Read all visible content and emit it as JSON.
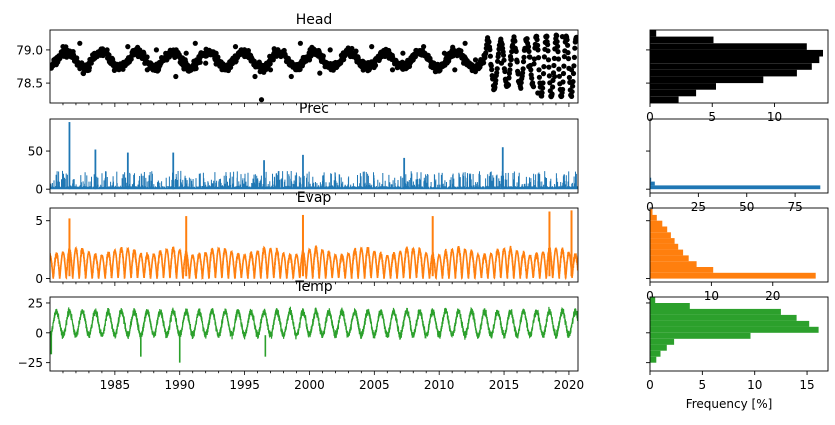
{
  "chart_data": [
    {
      "type": "scatter",
      "title": "Head",
      "x_range": [
        1980,
        2020.7
      ],
      "ylim": [
        78.2,
        79.3
      ],
      "y_ticks": [
        "78.5",
        "79.0"
      ],
      "x_ticks": [],
      "color": "#000000",
      "series": [
        {
          "x": [
            1980.3,
            1981.0,
            1981.6,
            1982.3,
            1983.0,
            1983.7,
            1984.4,
            1985.2,
            1986.0,
            1986.8,
            1987.5,
            1988.2,
            1989.0,
            1989.7,
            1990.5,
            1991.2,
            1992.0,
            1992.8,
            1993.6,
            1994.3,
            1995.0,
            1995.8,
            1996.3,
            1997.0,
            1997.8,
            1998.6,
            1999.3,
            2000.0,
            2000.8,
            2001.6,
            2002.4,
            2003.2,
            2004.0,
            2004.8,
            2005.6,
            2006.4,
            2007.2,
            2008.0,
            2008.8,
            2009.6,
            2010.4,
            2011.2,
            2012.0,
            2012.8,
            2013.5,
            2014.2,
            2014.8,
            2015.5,
            2016.2,
            2016.9,
            2017.6,
            2018.3,
            2018.9,
            2019.5,
            2020.2
          ],
          "y": [
            78.85,
            79.05,
            78.9,
            79.1,
            78.8,
            78.95,
            79.0,
            78.75,
            79.05,
            78.9,
            78.7,
            79.0,
            78.85,
            78.6,
            78.95,
            79.1,
            78.8,
            78.95,
            78.7,
            79.05,
            78.9,
            78.6,
            78.25,
            78.7,
            78.9,
            78.6,
            79.1,
            78.85,
            78.65,
            79.0,
            78.8,
            78.95,
            78.75,
            79.05,
            78.9,
            78.7,
            78.95,
            78.85,
            79.05,
            78.8,
            78.95,
            78.7,
            79.1,
            78.85,
            78.9,
            78.4,
            78.8,
            78.9,
            78.5,
            78.75,
            78.35,
            79.2,
            78.6,
            79.2,
            78.7
          ]
        }
      ]
    },
    {
      "type": "line",
      "title": "Prec",
      "x_range": [
        1980,
        2020.7
      ],
      "ylim": [
        -5,
        92
      ],
      "y_ticks": [
        "0",
        "50"
      ],
      "x_ticks": [],
      "color": "#1f77b4",
      "series": [
        {
          "x": [
            1981.5,
            1983.5,
            1986.0,
            1989.5,
            1996.5,
            1999.5,
            2007.3,
            2014.9
          ],
          "y": [
            88,
            52,
            48,
            48,
            38,
            45,
            41,
            55
          ]
        }
      ]
    },
    {
      "type": "line",
      "title": "Evap",
      "x_range": [
        1980,
        2020.7
      ],
      "ylim": [
        -0.3,
        6.1
      ],
      "y_ticks": [
        "0",
        "5"
      ],
      "x_ticks": [],
      "color": "#ff7f0e",
      "series": [
        {
          "x": [
            1981.5,
            1990.5,
            1999.5,
            2009.5,
            2018.5,
            2020.2
          ],
          "y": [
            5.2,
            5.4,
            5.5,
            5.4,
            5.8,
            5.9
          ]
        }
      ]
    },
    {
      "type": "line",
      "title": "Temp",
      "x_range": [
        1980,
        2020.7
      ],
      "ylim": [
        -32,
        30
      ],
      "y_ticks": [
        "−25",
        "0",
        "25"
      ],
      "x_ticks": [
        "1985",
        "1990",
        "1995",
        "2000",
        "2005",
        "2010",
        "2015",
        "2020"
      ],
      "x_tick_values": [
        1985,
        1990,
        1995,
        2000,
        2005,
        2010,
        2015,
        2020
      ],
      "color": "#2ca02c",
      "series": [
        {
          "x": [
            1980.1,
            1987.0,
            1990.0,
            1996.6
          ],
          "y": [
            -18,
            -20,
            -25,
            -20
          ]
        }
      ]
    },
    {
      "type": "bar",
      "orientation": "horizontal",
      "xlim": [
        0,
        14.3
      ],
      "x_ticks": [
        "0",
        "5",
        "10"
      ],
      "color": "#000000",
      "bins": [
        {
          "y0": 78.2,
          "y1": 78.3,
          "count": 2.3
        },
        {
          "y0": 78.3,
          "y1": 78.4,
          "count": 3.7
        },
        {
          "y0": 78.4,
          "y1": 78.5,
          "count": 5.3
        },
        {
          "y0": 78.5,
          "y1": 78.6,
          "count": 9.1
        },
        {
          "y0": 78.6,
          "y1": 78.7,
          "count": 11.8
        },
        {
          "y0": 78.7,
          "y1": 78.8,
          "count": 13.0
        },
        {
          "y0": 78.8,
          "y1": 78.9,
          "count": 13.6
        },
        {
          "y0": 78.9,
          "y1": 79.0,
          "count": 13.9
        },
        {
          "y0": 79.0,
          "y1": 79.1,
          "count": 12.6
        },
        {
          "y0": 79.1,
          "y1": 79.2,
          "count": 5.1
        },
        {
          "y0": 79.2,
          "y1": 79.3,
          "count": 0.5
        }
      ]
    },
    {
      "type": "bar",
      "orientation": "horizontal",
      "xlim": [
        0,
        92
      ],
      "x_ticks": [
        "0",
        "25",
        "50",
        "75"
      ],
      "color": "#1f77b4",
      "bins": [
        {
          "y0": 0,
          "y1": 5,
          "count": 88
        },
        {
          "y0": 5,
          "y1": 10,
          "count": 2.5
        },
        {
          "y0": 10,
          "y1": 15,
          "count": 0.6
        }
      ]
    },
    {
      "type": "bar",
      "orientation": "horizontal",
      "xlim": [
        0,
        29
      ],
      "x_ticks": [
        "0",
        "10",
        "20"
      ],
      "color": "#ff7f0e",
      "bins": [
        {
          "y0": 0,
          "y1": 0.5,
          "count": 27
        },
        {
          "y0": 0.5,
          "y1": 1.0,
          "count": 10.3
        },
        {
          "y0": 1.0,
          "y1": 1.5,
          "count": 7.6
        },
        {
          "y0": 1.5,
          "y1": 2.0,
          "count": 6.3
        },
        {
          "y0": 2.0,
          "y1": 2.5,
          "count": 5.4
        },
        {
          "y0": 2.5,
          "y1": 3.0,
          "count": 4.6
        },
        {
          "y0": 3.0,
          "y1": 3.5,
          "count": 4.0
        },
        {
          "y0": 3.5,
          "y1": 4.0,
          "count": 3.4
        },
        {
          "y0": 4.0,
          "y1": 4.5,
          "count": 2.8
        },
        {
          "y0": 4.5,
          "y1": 5.0,
          "count": 2.0
        },
        {
          "y0": 5.0,
          "y1": 5.5,
          "count": 1.1
        },
        {
          "y0": 5.5,
          "y1": 6.0,
          "count": 0.4
        }
      ]
    },
    {
      "type": "bar",
      "orientation": "horizontal",
      "xlim": [
        0,
        17
      ],
      "x_ticks": [
        "0",
        "5",
        "10",
        "15"
      ],
      "xlabel": "Frequency [%]",
      "color": "#2ca02c",
      "bins": [
        {
          "y0": -25,
          "y1": -20,
          "count": 0.6
        },
        {
          "y0": -20,
          "y1": -15,
          "count": 1.0
        },
        {
          "y0": -15,
          "y1": -10,
          "count": 1.6
        },
        {
          "y0": -10,
          "y1": -5,
          "count": 2.3
        },
        {
          "y0": -5,
          "y1": 0,
          "count": 9.6
        },
        {
          "y0": 0,
          "y1": 5,
          "count": 16.1
        },
        {
          "y0": 5,
          "y1": 10,
          "count": 15.2
        },
        {
          "y0": 10,
          "y1": 15,
          "count": 14.0
        },
        {
          "y0": 15,
          "y1": 20,
          "count": 12.5
        },
        {
          "y0": 20,
          "y1": 25,
          "count": 3.8
        },
        {
          "y0": 25,
          "y1": 30,
          "count": 0.5
        }
      ]
    }
  ]
}
